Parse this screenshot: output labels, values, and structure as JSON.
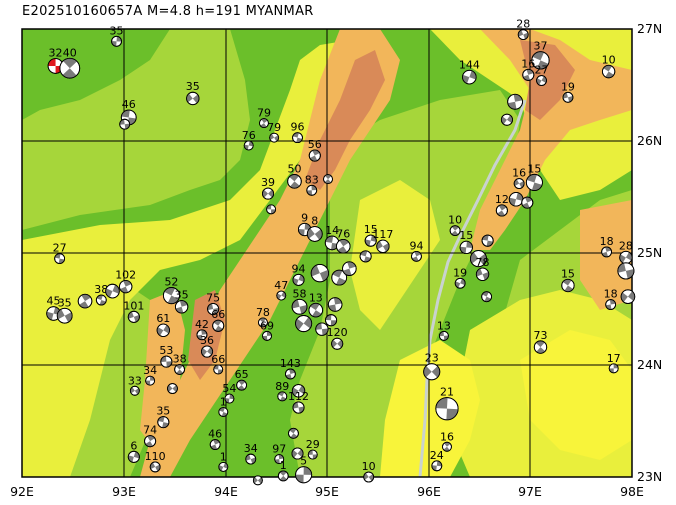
{
  "header": {
    "title": "E202510160657A M=4.8 h=191 MYANMAR"
  },
  "map": {
    "lon_range": [
      92,
      98
    ],
    "lat_range": [
      23,
      27
    ],
    "x_ticks": [
      "92E",
      "93E",
      "94E",
      "95E",
      "96E",
      "97E",
      "98E"
    ],
    "y_ticks": [
      "23N",
      "24N",
      "25N",
      "26N",
      "27N"
    ],
    "colors": {
      "lowland": "#6bbf2a",
      "plain": "#a6d63a",
      "hill": "#e9ef3c",
      "upland": "#f8f43a",
      "mountain": "#f2b65a",
      "highpeak": "#d98a58",
      "river": "#c9d2cf",
      "highlight": "#e0181f",
      "beachball": "#7a7a7a"
    }
  },
  "events": [
    {
      "lon": 92.33,
      "lat": 26.67,
      "depth": "32",
      "mag": 4.6,
      "highlight": true
    },
    {
      "lon": 92.47,
      "lat": 26.65,
      "depth": "40",
      "mag": 5.0
    },
    {
      "lon": 92.93,
      "lat": 26.89,
      "depth": "35",
      "mag": 4.2
    },
    {
      "lon": 93.68,
      "lat": 26.38,
      "depth": "35",
      "mag": 4.4
    },
    {
      "lon": 93.05,
      "lat": 26.21,
      "depth": "46",
      "mag": 4.6
    },
    {
      "lon": 94.38,
      "lat": 26.16,
      "depth": "79",
      "mag": 4.0
    },
    {
      "lon": 94.23,
      "lat": 25.96,
      "depth": "76",
      "mag": 4.0
    },
    {
      "lon": 94.48,
      "lat": 26.03,
      "depth": "79",
      "mag": 4.1
    },
    {
      "lon": 94.71,
      "lat": 26.03,
      "depth": "96",
      "mag": 4.2
    },
    {
      "lon": 94.88,
      "lat": 25.87,
      "depth": "56",
      "mag": 4.3
    },
    {
      "lon": 96.4,
      "lat": 26.57,
      "depth": "144",
      "mag": 4.5
    },
    {
      "lon": 96.93,
      "lat": 26.95,
      "depth": "28",
      "mag": 4.2
    },
    {
      "lon": 97.1,
      "lat": 26.72,
      "depth": "37",
      "mag": 4.8
    },
    {
      "lon": 96.98,
      "lat": 26.59,
      "depth": "16",
      "mag": 4.3
    },
    {
      "lon": 97.11,
      "lat": 26.54,
      "depth": "27",
      "mag": 4.2
    },
    {
      "lon": 97.37,
      "lat": 26.39,
      "depth": "19",
      "mag": 4.2
    },
    {
      "lon": 97.77,
      "lat": 26.62,
      "depth": "10",
      "mag": 4.4
    },
    {
      "lon": 96.85,
      "lat": 26.35,
      "depth": "",
      "mag": 4.6
    },
    {
      "lon": 96.77,
      "lat": 26.19,
      "depth": "",
      "mag": 4.3
    },
    {
      "lon": 93.01,
      "lat": 26.15,
      "depth": "",
      "mag": 4.2
    },
    {
      "lon": 94.68,
      "lat": 25.64,
      "depth": "50",
      "mag": 4.5
    },
    {
      "lon": 94.85,
      "lat": 25.56,
      "depth": "83",
      "mag": 4.2
    },
    {
      "lon": 94.42,
      "lat": 25.53,
      "depth": "39",
      "mag": 4.3
    },
    {
      "lon": 94.45,
      "lat": 25.39,
      "depth": "",
      "mag": 4.1
    },
    {
      "lon": 95.01,
      "lat": 25.66,
      "depth": "",
      "mag": 4.1
    },
    {
      "lon": 94.78,
      "lat": 25.21,
      "depth": "9",
      "mag": 4.4
    },
    {
      "lon": 94.88,
      "lat": 25.17,
      "depth": "8",
      "mag": 4.6
    },
    {
      "lon": 95.05,
      "lat": 25.09,
      "depth": "14",
      "mag": 4.5
    },
    {
      "lon": 95.16,
      "lat": 25.06,
      "depth": "76",
      "mag": 4.5
    },
    {
      "lon": 95.43,
      "lat": 25.11,
      "depth": "15",
      "mag": 4.3
    },
    {
      "lon": 95.55,
      "lat": 25.06,
      "depth": "117",
      "mag": 4.4
    },
    {
      "lon": 95.38,
      "lat": 24.97,
      "depth": "",
      "mag": 4.3
    },
    {
      "lon": 95.88,
      "lat": 24.97,
      "depth": "94",
      "mag": 4.2
    },
    {
      "lon": 94.72,
      "lat": 24.76,
      "depth": "94",
      "mag": 4.3
    },
    {
      "lon": 94.93,
      "lat": 24.82,
      "depth": "",
      "mag": 4.8
    },
    {
      "lon": 95.12,
      "lat": 24.78,
      "depth": "",
      "mag": 4.6
    },
    {
      "lon": 95.22,
      "lat": 24.86,
      "depth": "",
      "mag": 4.5
    },
    {
      "lon": 94.55,
      "lat": 24.62,
      "depth": "47",
      "mag": 4.1
    },
    {
      "lon": 94.73,
      "lat": 24.52,
      "depth": "58",
      "mag": 4.6
    },
    {
      "lon": 94.89,
      "lat": 24.49,
      "depth": "13",
      "mag": 4.5
    },
    {
      "lon": 95.08,
      "lat": 24.54,
      "depth": "",
      "mag": 4.5
    },
    {
      "lon": 94.77,
      "lat": 24.37,
      "depth": "",
      "mag": 4.7
    },
    {
      "lon": 94.95,
      "lat": 24.32,
      "depth": "",
      "mag": 4.4
    },
    {
      "lon": 94.37,
      "lat": 24.38,
      "depth": "78",
      "mag": 4.1
    },
    {
      "lon": 94.41,
      "lat": 24.26,
      "depth": "69",
      "mag": 4.1
    },
    {
      "lon": 95.1,
      "lat": 24.19,
      "depth": "120",
      "mag": 4.3
    },
    {
      "lon": 95.04,
      "lat": 24.4,
      "depth": "",
      "mag": 4.3
    },
    {
      "lon": 96.26,
      "lat": 25.2,
      "depth": "10",
      "mag": 4.2
    },
    {
      "lon": 96.37,
      "lat": 25.05,
      "depth": "15",
      "mag": 4.4
    },
    {
      "lon": 96.49,
      "lat": 24.95,
      "depth": "",
      "mag": 4.7
    },
    {
      "lon": 96.58,
      "lat": 25.11,
      "depth": "",
      "mag": 4.3
    },
    {
      "lon": 96.72,
      "lat": 25.38,
      "depth": "12",
      "mag": 4.3
    },
    {
      "lon": 96.86,
      "lat": 25.48,
      "depth": "",
      "mag": 4.5
    },
    {
      "lon": 96.89,
      "lat": 25.62,
      "depth": "16",
      "mag": 4.2
    },
    {
      "lon": 97.04,
      "lat": 25.63,
      "depth": "15",
      "mag": 4.7
    },
    {
      "lon": 96.97,
      "lat": 25.45,
      "depth": "",
      "mag": 4.3
    },
    {
      "lon": 96.31,
      "lat": 24.73,
      "depth": "19",
      "mag": 4.2
    },
    {
      "lon": 96.53,
      "lat": 24.81,
      "depth": "78",
      "mag": 4.4
    },
    {
      "lon": 96.57,
      "lat": 24.61,
      "depth": "",
      "mag": 4.2
    },
    {
      "lon": 97.75,
      "lat": 25.01,
      "depth": "18",
      "mag": 4.2
    },
    {
      "lon": 97.94,
      "lat": 24.96,
      "depth": "28",
      "mag": 4.4
    },
    {
      "lon": 97.94,
      "lat": 24.84,
      "depth": "",
      "mag": 4.7
    },
    {
      "lon": 97.37,
      "lat": 24.71,
      "depth": "15",
      "mag": 4.4
    },
    {
      "lon": 97.79,
      "lat": 24.54,
      "depth": "18",
      "mag": 4.2
    },
    {
      "lon": 97.96,
      "lat": 24.61,
      "depth": "",
      "mag": 4.5
    },
    {
      "lon": 96.15,
      "lat": 24.26,
      "depth": "13",
      "mag": 4.1
    },
    {
      "lon": 97.1,
      "lat": 24.16,
      "depth": "73",
      "mag": 4.4
    },
    {
      "lon": 97.82,
      "lat": 23.97,
      "depth": "17",
      "mag": 4.1
    },
    {
      "lon": 96.03,
      "lat": 23.94,
      "depth": "23",
      "mag": 4.7
    },
    {
      "lon": 96.18,
      "lat": 23.61,
      "depth": "21",
      "mag": 5.2
    },
    {
      "lon": 96.18,
      "lat": 23.27,
      "depth": "16",
      "mag": 4.1
    },
    {
      "lon": 96.08,
      "lat": 23.1,
      "depth": "24",
      "mag": 4.2
    },
    {
      "lon": 95.41,
      "lat": 23.0,
      "depth": "10",
      "mag": 4.2
    },
    {
      "lon": 92.37,
      "lat": 24.95,
      "depth": "27",
      "mag": 4.2
    },
    {
      "lon": 92.62,
      "lat": 24.57,
      "depth": "",
      "mag": 4.5
    },
    {
      "lon": 92.31,
      "lat": 24.46,
      "depth": "45",
      "mag": 4.5
    },
    {
      "lon": 92.42,
      "lat": 24.44,
      "depth": "35",
      "mag": 4.6
    },
    {
      "lon": 92.78,
      "lat": 24.58,
      "depth": "38",
      "mag": 4.2
    },
    {
      "lon": 93.02,
      "lat": 24.7,
      "depth": "102",
      "mag": 4.4
    },
    {
      "lon": 92.89,
      "lat": 24.66,
      "depth": "",
      "mag": 4.5
    },
    {
      "lon": 93.1,
      "lat": 24.43,
      "depth": "101",
      "mag": 4.3
    },
    {
      "lon": 93.47,
      "lat": 24.62,
      "depth": "52",
      "mag": 4.7
    },
    {
      "lon": 93.57,
      "lat": 24.52,
      "depth": "35",
      "mag": 4.4
    },
    {
      "lon": 93.39,
      "lat": 24.31,
      "depth": "61",
      "mag": 4.4
    },
    {
      "lon": 93.88,
      "lat": 24.5,
      "depth": "75",
      "mag": 4.3
    },
    {
      "lon": 93.93,
      "lat": 24.35,
      "depth": "66",
      "mag": 4.3
    },
    {
      "lon": 93.77,
      "lat": 24.27,
      "depth": "42",
      "mag": 4.2
    },
    {
      "lon": 93.82,
      "lat": 24.12,
      "depth": "36",
      "mag": 4.3
    },
    {
      "lon": 93.42,
      "lat": 24.03,
      "depth": "53",
      "mag": 4.3
    },
    {
      "lon": 93.55,
      "lat": 23.96,
      "depth": "38",
      "mag": 4.2
    },
    {
      "lon": 93.26,
      "lat": 23.86,
      "depth": "34",
      "mag": 4.1
    },
    {
      "lon": 93.48,
      "lat": 23.79,
      "depth": "",
      "mag": 4.2
    },
    {
      "lon": 93.93,
      "lat": 23.96,
      "depth": "66",
      "mag": 4.1
    },
    {
      "lon": 94.16,
      "lat": 23.82,
      "depth": "65",
      "mag": 4.2
    },
    {
      "lon": 94.04,
      "lat": 23.7,
      "depth": "54",
      "mag": 4.0
    },
    {
      "lon": 93.11,
      "lat": 23.77,
      "depth": "33",
      "mag": 4.1
    },
    {
      "lon": 93.39,
      "lat": 23.49,
      "depth": "35",
      "mag": 4.3
    },
    {
      "lon": 93.26,
      "lat": 23.32,
      "depth": "74",
      "mag": 4.3
    },
    {
      "lon": 93.1,
      "lat": 23.18,
      "depth": "6",
      "mag": 4.3
    },
    {
      "lon": 93.31,
      "lat": 23.09,
      "depth": "110",
      "mag": 4.2
    },
    {
      "lon": 93.98,
      "lat": 23.58,
      "depth": "1",
      "mag": 4.0
    },
    {
      "lon": 93.9,
      "lat": 23.29,
      "depth": "46",
      "mag": 4.2
    },
    {
      "lon": 93.98,
      "lat": 23.09,
      "depth": "1",
      "mag": 4.0
    },
    {
      "lon": 94.25,
      "lat": 23.16,
      "depth": "34",
      "mag": 4.2
    },
    {
      "lon": 94.56,
      "lat": 23.72,
      "depth": "89",
      "mag": 4.1
    },
    {
      "lon": 94.64,
      "lat": 23.92,
      "depth": "143",
      "mag": 4.2
    },
    {
      "lon": 94.72,
      "lat": 23.77,
      "depth": "",
      "mag": 4.4
    },
    {
      "lon": 94.72,
      "lat": 23.62,
      "depth": "112",
      "mag": 4.3
    },
    {
      "lon": 94.67,
      "lat": 23.39,
      "depth": "",
      "mag": 4.2
    },
    {
      "lon": 94.53,
      "lat": 23.16,
      "depth": "97",
      "mag": 4.1
    },
    {
      "lon": 94.71,
      "lat": 23.21,
      "depth": "",
      "mag": 4.3
    },
    {
      "lon": 94.86,
      "lat": 23.2,
      "depth": "29",
      "mag": 4.1
    },
    {
      "lon": 94.57,
      "lat": 23.01,
      "depth": "1",
      "mag": 4.2
    },
    {
      "lon": 94.77,
      "lat": 23.02,
      "depth": "5",
      "mag": 4.7
    },
    {
      "lon": 94.32,
      "lat": 22.97,
      "depth": "",
      "mag": 4.0
    }
  ]
}
